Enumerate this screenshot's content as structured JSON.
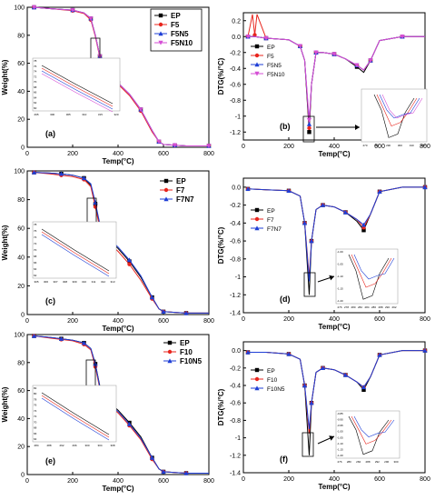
{
  "chart_data": [
    {
      "id": "a",
      "type": "line",
      "label": "(a)",
      "xlabel": "Temp(°C)",
      "ylabel": "Weight(%)",
      "xlim": [
        0,
        800
      ],
      "ylim": [
        0,
        100
      ],
      "xticks": [
        0,
        200,
        400,
        600,
        800
      ],
      "yticks": [
        0,
        20,
        40,
        60,
        80,
        100
      ],
      "legend_position": "top-right",
      "inset_xticks": [
        "295",
        "300",
        "305",
        "310",
        "315",
        "320"
      ],
      "inset_yticks": [
        "78",
        "76",
        "74",
        "72",
        "70",
        "68",
        "66",
        "64",
        "62",
        "60"
      ],
      "series": [
        {
          "name": "EP",
          "color": "#000000",
          "marker": "square",
          "x": [
            30,
            100,
            200,
            250,
            280,
            300,
            320,
            350,
            400,
            450,
            500,
            550,
            580,
            600,
            650,
            700,
            800
          ],
          "y": [
            100,
            99,
            98,
            96,
            92,
            80,
            65,
            53,
            46,
            38,
            27,
            12,
            4,
            2,
            1.5,
            1,
            1
          ]
        },
        {
          "name": "F5",
          "color": "#e8251d",
          "marker": "circle",
          "x": [
            30,
            100,
            200,
            250,
            280,
            300,
            320,
            350,
            400,
            450,
            500,
            550,
            580,
            600,
            650,
            700,
            800
          ],
          "y": [
            100,
            99,
            97.5,
            95.5,
            91,
            79,
            64,
            52,
            45,
            37,
            26,
            11,
            4,
            2,
            1.5,
            1,
            1
          ]
        },
        {
          "name": "F5N5",
          "color": "#1f3fd6",
          "marker": "triangle",
          "x": [
            30,
            100,
            200,
            250,
            280,
            300,
            320,
            350,
            400,
            450,
            500,
            550,
            580,
            600,
            650,
            700,
            800
          ],
          "y": [
            100,
            99,
            98,
            96,
            92,
            80,
            65,
            53,
            46,
            38,
            27,
            12,
            4,
            2,
            1.5,
            1,
            1
          ]
        },
        {
          "name": "F5N10",
          "color": "#d64fd6",
          "marker": "triangle-down",
          "x": [
            30,
            100,
            200,
            250,
            280,
            300,
            320,
            350,
            400,
            450,
            500,
            550,
            580,
            600,
            650,
            700,
            800
          ],
          "y": [
            100,
            99,
            98,
            96,
            92,
            80,
            65,
            53,
            46,
            38,
            27,
            12,
            4,
            2,
            1.5,
            1,
            1
          ]
        }
      ]
    },
    {
      "id": "b",
      "type": "line",
      "label": "(b)",
      "xlabel": "Temp(°C)",
      "ylabel": "DTG(%/°C)",
      "xlim": [
        0,
        800
      ],
      "ylim": [
        -1.3,
        0.3
      ],
      "xticks": [
        0,
        200,
        400,
        600,
        800
      ],
      "yticks": [
        0.2,
        0.0,
        -0.2,
        -0.4,
        -0.6,
        -0.8,
        -1.0,
        -1.2
      ],
      "legend_position": "left",
      "inset_xticks": [
        "270",
        "280",
        "290",
        "300",
        "310",
        "320"
      ],
      "series": [
        {
          "name": "EP",
          "color": "#000000",
          "marker": "square",
          "x": [
            20,
            50,
            100,
            200,
            250,
            270,
            290,
            300,
            320,
            350,
            400,
            450,
            500,
            530,
            560,
            600,
            700,
            800
          ],
          "y": [
            0,
            0,
            -0.02,
            -0.04,
            -0.12,
            -0.3,
            -1.2,
            -0.6,
            -0.2,
            -0.2,
            -0.22,
            -0.28,
            -0.38,
            -0.45,
            -0.3,
            -0.05,
            0,
            0
          ]
        },
        {
          "name": "F5",
          "color": "#e8251d",
          "marker": "circle",
          "x": [
            20,
            40,
            50,
            60,
            100,
            200,
            250,
            270,
            290,
            300,
            320,
            350,
            400,
            450,
            500,
            530,
            560,
            600,
            700,
            800
          ],
          "y": [
            0,
            0.28,
            0.02,
            0.28,
            -0.02,
            -0.04,
            -0.12,
            -0.3,
            -1.15,
            -0.6,
            -0.2,
            -0.2,
            -0.22,
            -0.28,
            -0.36,
            -0.42,
            -0.3,
            -0.05,
            0,
            0
          ]
        },
        {
          "name": "F5N5",
          "color": "#1f3fd6",
          "marker": "triangle",
          "x": [
            20,
            50,
            100,
            200,
            250,
            270,
            290,
            300,
            320,
            350,
            400,
            450,
            500,
            530,
            560,
            600,
            700,
            800
          ],
          "y": [
            0,
            0,
            -0.02,
            -0.04,
            -0.12,
            -0.3,
            -1.1,
            -0.6,
            -0.2,
            -0.2,
            -0.22,
            -0.28,
            -0.36,
            -0.42,
            -0.3,
            -0.05,
            0,
            0
          ]
        },
        {
          "name": "F5N10",
          "color": "#d64fd6",
          "marker": "triangle-down",
          "x": [
            20,
            50,
            100,
            200,
            250,
            270,
            290,
            300,
            320,
            350,
            400,
            450,
            500,
            530,
            560,
            600,
            700,
            800
          ],
          "y": [
            0,
            0,
            -0.02,
            -0.04,
            -0.12,
            -0.3,
            -1.05,
            -0.6,
            -0.2,
            -0.2,
            -0.22,
            -0.28,
            -0.36,
            -0.42,
            -0.3,
            -0.05,
            0,
            0
          ]
        }
      ]
    },
    {
      "id": "c",
      "type": "line",
      "label": "(c)",
      "xlabel": "Temp(°C)",
      "ylabel": "Weight(%)",
      "xlim": [
        0,
        800
      ],
      "ylim": [
        0,
        100
      ],
      "xticks": [
        0,
        200,
        400,
        600,
        800
      ],
      "yticks": [
        0,
        20,
        40,
        60,
        80,
        100
      ],
      "legend_position": "top-right",
      "inset_xticks": [
        "305",
        "306",
        "307",
        "308",
        "309",
        "310",
        "311",
        "312",
        "313"
      ],
      "inset_yticks": [
        "78",
        "76",
        "74",
        "72",
        "70",
        "68",
        "66",
        "64",
        "62"
      ],
      "series": [
        {
          "name": "EP",
          "color": "#000000",
          "marker": "square",
          "x": [
            30,
            100,
            150,
            200,
            250,
            280,
            300,
            320,
            350,
            400,
            450,
            500,
            550,
            580,
            600,
            650,
            700,
            800
          ],
          "y": [
            99,
            98.5,
            98,
            97,
            95,
            90,
            77,
            62,
            53,
            46,
            37,
            26,
            12,
            4,
            2,
            1.5,
            1,
            1
          ]
        },
        {
          "name": "F7",
          "color": "#e8251d",
          "marker": "circle",
          "x": [
            30,
            100,
            150,
            200,
            250,
            280,
            300,
            320,
            350,
            400,
            450,
            500,
            550,
            580,
            600,
            650,
            700,
            800
          ],
          "y": [
            99,
            98,
            97,
            96,
            94,
            89,
            75,
            60,
            51,
            44,
            35,
            24,
            11,
            4,
            2,
            1.5,
            1,
            1
          ]
        },
        {
          "name": "F7N7",
          "color": "#1f3fd6",
          "marker": "triangle",
          "x": [
            30,
            100,
            150,
            200,
            250,
            280,
            300,
            320,
            350,
            400,
            450,
            500,
            550,
            580,
            600,
            650,
            700,
            800
          ],
          "y": [
            99,
            98.5,
            98,
            97,
            95,
            91,
            78,
            63,
            54,
            47,
            38,
            27,
            12,
            4,
            2,
            1.5,
            1,
            1
          ]
        }
      ]
    },
    {
      "id": "d",
      "type": "line",
      "label": "(d)",
      "xlabel": "Temp(°C)",
      "ylabel": "DTG(%/°C)",
      "xlim": [
        0,
        800
      ],
      "ylim": [
        -1.4,
        0.1
      ],
      "xticks": [
        0,
        200,
        400,
        600,
        800
      ],
      "yticks": [
        0.0,
        -0.2,
        -0.4,
        -0.6,
        -0.8,
        -1.0,
        -1.2,
        -1.4
      ],
      "legend_position": "left",
      "inset_yticks": [
        "-1.00",
        "-1.05",
        "-1.10",
        "-1.15",
        "-1.20"
      ],
      "inset_xticks": [
        "276",
        "278",
        "280",
        "282",
        "284",
        "286",
        "288",
        "290",
        "292"
      ],
      "series": [
        {
          "name": "EP",
          "color": "#000000",
          "marker": "square",
          "x": [
            20,
            100,
            200,
            250,
            270,
            290,
            300,
            320,
            350,
            400,
            450,
            500,
            530,
            560,
            600,
            700,
            800
          ],
          "y": [
            -0.02,
            -0.03,
            -0.04,
            -0.1,
            -0.4,
            -1.2,
            -0.6,
            -0.25,
            -0.2,
            -0.22,
            -0.28,
            -0.38,
            -0.48,
            -0.3,
            -0.05,
            0,
            0
          ]
        },
        {
          "name": "F7",
          "color": "#e8251d",
          "marker": "circle",
          "x": [
            20,
            100,
            200,
            250,
            270,
            290,
            300,
            320,
            350,
            400,
            450,
            500,
            530,
            560,
            600,
            700,
            800
          ],
          "y": [
            -0.02,
            -0.03,
            -0.04,
            -0.1,
            -0.4,
            -1.0,
            -0.6,
            -0.25,
            -0.2,
            -0.22,
            -0.28,
            -0.36,
            -0.45,
            -0.3,
            -0.05,
            0,
            0
          ]
        },
        {
          "name": "F7N7",
          "color": "#1f3fd6",
          "marker": "triangle",
          "x": [
            20,
            100,
            200,
            250,
            270,
            290,
            300,
            320,
            350,
            400,
            450,
            500,
            530,
            560,
            600,
            700,
            800
          ],
          "y": [
            -0.02,
            -0.03,
            -0.04,
            -0.1,
            -0.4,
            -1.05,
            -0.6,
            -0.25,
            -0.2,
            -0.22,
            -0.28,
            -0.36,
            -0.42,
            -0.3,
            -0.05,
            0,
            0
          ]
        }
      ]
    },
    {
      "id": "e",
      "type": "line",
      "label": "(e)",
      "xlabel": "Temp(°C)",
      "ylabel": "Weight(%)",
      "xlim": [
        0,
        800
      ],
      "ylim": [
        0,
        100
      ],
      "xticks": [
        0,
        200,
        400,
        600,
        800
      ],
      "yticks": [
        0,
        20,
        40,
        60,
        80,
        100
      ],
      "legend_position": "top-right",
      "inset_xticks": [
        "284",
        "288",
        "292",
        "296",
        "300",
        "304",
        "308"
      ],
      "inset_yticks": [
        "82",
        "80",
        "78",
        "76",
        "74",
        "72",
        "70",
        "68",
        "66",
        "64"
      ],
      "series": [
        {
          "name": "EP",
          "color": "#000000",
          "marker": "square",
          "x": [
            30,
            100,
            150,
            200,
            250,
            280,
            300,
            320,
            350,
            400,
            450,
            500,
            550,
            580,
            600,
            650,
            700,
            800
          ],
          "y": [
            99,
            98,
            97,
            96,
            94,
            90,
            79,
            63,
            53,
            46,
            37,
            27,
            12,
            4,
            2,
            1.5,
            1,
            1
          ]
        },
        {
          "name": "F10",
          "color": "#e8251d",
          "marker": "circle",
          "x": [
            30,
            100,
            150,
            200,
            250,
            280,
            300,
            320,
            350,
            400,
            450,
            500,
            550,
            580,
            600,
            650,
            700,
            800
          ],
          "y": [
            99,
            97.5,
            96.5,
            95.5,
            93,
            89,
            77,
            61,
            51,
            44,
            35,
            25,
            11,
            4,
            2,
            1.5,
            1,
            1
          ]
        },
        {
          "name": "F10N5",
          "color": "#1f3fd6",
          "marker": "triangle",
          "x": [
            30,
            100,
            150,
            200,
            250,
            280,
            300,
            320,
            350,
            400,
            450,
            500,
            550,
            580,
            600,
            650,
            700,
            800
          ],
          "y": [
            99,
            98,
            97,
            96,
            94,
            90,
            79,
            62,
            52,
            45,
            36,
            26,
            12,
            4,
            2,
            1.5,
            1,
            1
          ]
        }
      ]
    },
    {
      "id": "f",
      "type": "line",
      "label": "(f)",
      "xlabel": "Temp(°C)",
      "ylabel": "DTG(%/°C)",
      "xlim": [
        0,
        800
      ],
      "ylim": [
        -1.4,
        0.1
      ],
      "xticks": [
        0,
        200,
        400,
        600,
        800
      ],
      "yticks": [
        0.0,
        -0.2,
        -0.4,
        -0.6,
        -0.8,
        -1.0,
        -1.2,
        -1.4
      ],
      "legend_position": "left",
      "inset_yticks": [
        "-0.85",
        "-0.90",
        "-0.95",
        "-1.00",
        "-1.05",
        "-1.10",
        "-1.15",
        "-1.20"
      ],
      "inset_xticks": [
        "276",
        "280",
        "284",
        "288",
        "292",
        "296",
        "300"
      ],
      "series": [
        {
          "name": "EP",
          "color": "#000000",
          "marker": "square",
          "x": [
            20,
            100,
            200,
            250,
            270,
            290,
            300,
            320,
            350,
            400,
            450,
            500,
            530,
            560,
            600,
            700,
            800
          ],
          "y": [
            -0.02,
            -0.02,
            -0.04,
            -0.1,
            -0.4,
            -1.2,
            -0.6,
            -0.25,
            -0.2,
            -0.22,
            -0.28,
            -0.36,
            -0.45,
            -0.3,
            -0.05,
            0,
            0
          ]
        },
        {
          "name": "F10",
          "color": "#e8251d",
          "marker": "circle",
          "x": [
            20,
            100,
            200,
            250,
            270,
            290,
            300,
            320,
            350,
            400,
            450,
            500,
            530,
            560,
            600,
            700,
            800
          ],
          "y": [
            -0.02,
            -0.02,
            -0.04,
            -0.1,
            -0.4,
            -0.95,
            -0.6,
            -0.25,
            -0.2,
            -0.22,
            -0.28,
            -0.36,
            -0.42,
            -0.3,
            -0.05,
            0,
            0
          ]
        },
        {
          "name": "F10N5",
          "color": "#1f3fd6",
          "marker": "triangle",
          "x": [
            20,
            100,
            200,
            250,
            270,
            290,
            300,
            320,
            350,
            400,
            450,
            500,
            530,
            560,
            600,
            700,
            800
          ],
          "y": [
            -0.02,
            -0.02,
            -0.04,
            -0.1,
            -0.4,
            -0.9,
            -0.6,
            -0.25,
            -0.2,
            -0.22,
            -0.28,
            -0.36,
            -0.42,
            -0.3,
            -0.05,
            0,
            0
          ]
        }
      ]
    }
  ]
}
